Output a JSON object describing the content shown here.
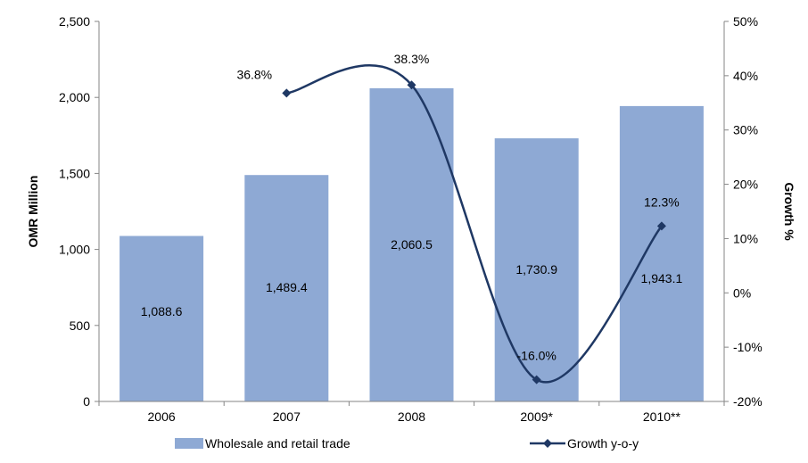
{
  "chart_data": {
    "type": "bar",
    "categories": [
      "2006",
      "2007",
      "2008",
      "2009*",
      "2010**"
    ],
    "series": [
      {
        "name": "Wholesale and retail trade",
        "type": "bar",
        "axis": "left",
        "values": [
          1088.6,
          1489.4,
          2060.5,
          1730.9,
          1943.1
        ],
        "value_labels": [
          "1,088.6",
          "1,489.4",
          "2,060.5",
          "1,730.9",
          "1,943.1"
        ],
        "color": "#8EA9D4"
      },
      {
        "name": "Growth y-o-y",
        "type": "line",
        "axis": "right",
        "values": [
          null,
          36.8,
          38.3,
          -16.0,
          12.3
        ],
        "value_labels": [
          "",
          "36.8%",
          "38.3%",
          "-16.0%",
          "12.3%"
        ],
        "color": "#1F3864",
        "marker": "diamond",
        "smooth": true
      }
    ],
    "ylabel": "OMR Million",
    "y2label": "Growth %",
    "ylim": [
      0,
      2500
    ],
    "y2lim": [
      -20,
      50
    ],
    "yticks": [
      "0",
      "500",
      "1,000",
      "1,500",
      "2,000",
      "2,500"
    ],
    "y2ticks": [
      "-20%",
      "-10%",
      "0%",
      "10%",
      "20%",
      "30%",
      "40%",
      "50%"
    ],
    "grid": false,
    "legend": "bottom"
  }
}
